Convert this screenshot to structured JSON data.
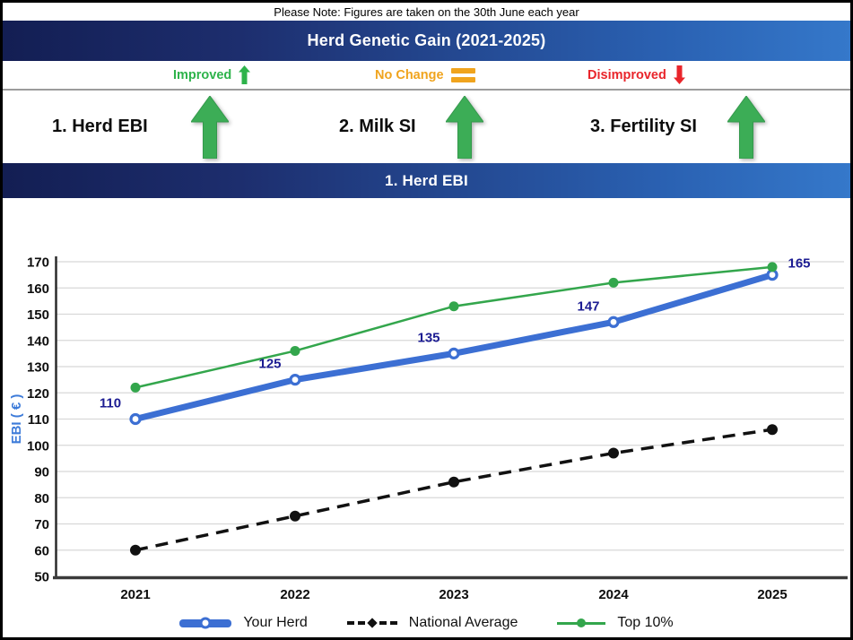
{
  "note": "Please Note: Figures are taken on the 30th June each year",
  "main_header": {
    "title": "Herd Genetic Gain (2021-2025)"
  },
  "status_key": {
    "improved_label": "Improved",
    "no_change_label": "No Change",
    "disimproved_label": "Disimproved"
  },
  "indicators": [
    {
      "label": "1. Herd EBI",
      "status": "improved"
    },
    {
      "label": "2. Milk SI",
      "status": "improved"
    },
    {
      "label": "3. Fertility SI",
      "status": "improved"
    }
  ],
  "section_header": {
    "title": "1. Herd EBI"
  },
  "chart_data": {
    "type": "line",
    "title": "1. Herd EBI",
    "xlabel": "",
    "ylabel": "EBI ( € )",
    "categories": [
      "2021",
      "2022",
      "2023",
      "2024",
      "2025"
    ],
    "series": [
      {
        "name": "Your Herd",
        "values": [
          110,
          125,
          135,
          147,
          165
        ],
        "color": "#3C6FD3",
        "line_style": "solid-thick",
        "marker": "open-circle",
        "data_labels": true
      },
      {
        "name": "National Average",
        "values": [
          60,
          73,
          86,
          97,
          106
        ],
        "color": "#111111",
        "line_style": "dashed",
        "marker": "filled-circle",
        "data_labels": false
      },
      {
        "name": "Top 10%",
        "values": [
          122,
          136,
          153,
          162,
          168
        ],
        "color": "#33A64C",
        "line_style": "solid",
        "marker": "filled-circle",
        "data_labels": false
      }
    ],
    "ylim": [
      50,
      170
    ],
    "ytick_step": 10,
    "grid": true,
    "legend_position": "bottom",
    "data_label_color": "#1C1C92"
  },
  "colors": {
    "header_gradient_start": "#141F55",
    "header_gradient_end": "#3377C9",
    "improved_green": "#2EB34B",
    "no_change_orange": "#F0A41E",
    "disimproved_red": "#E9252B",
    "arrow_green": "#3CAD56",
    "axis_title_blue": "#3D7BD9",
    "gridline_gray": "#D8D8D8"
  }
}
